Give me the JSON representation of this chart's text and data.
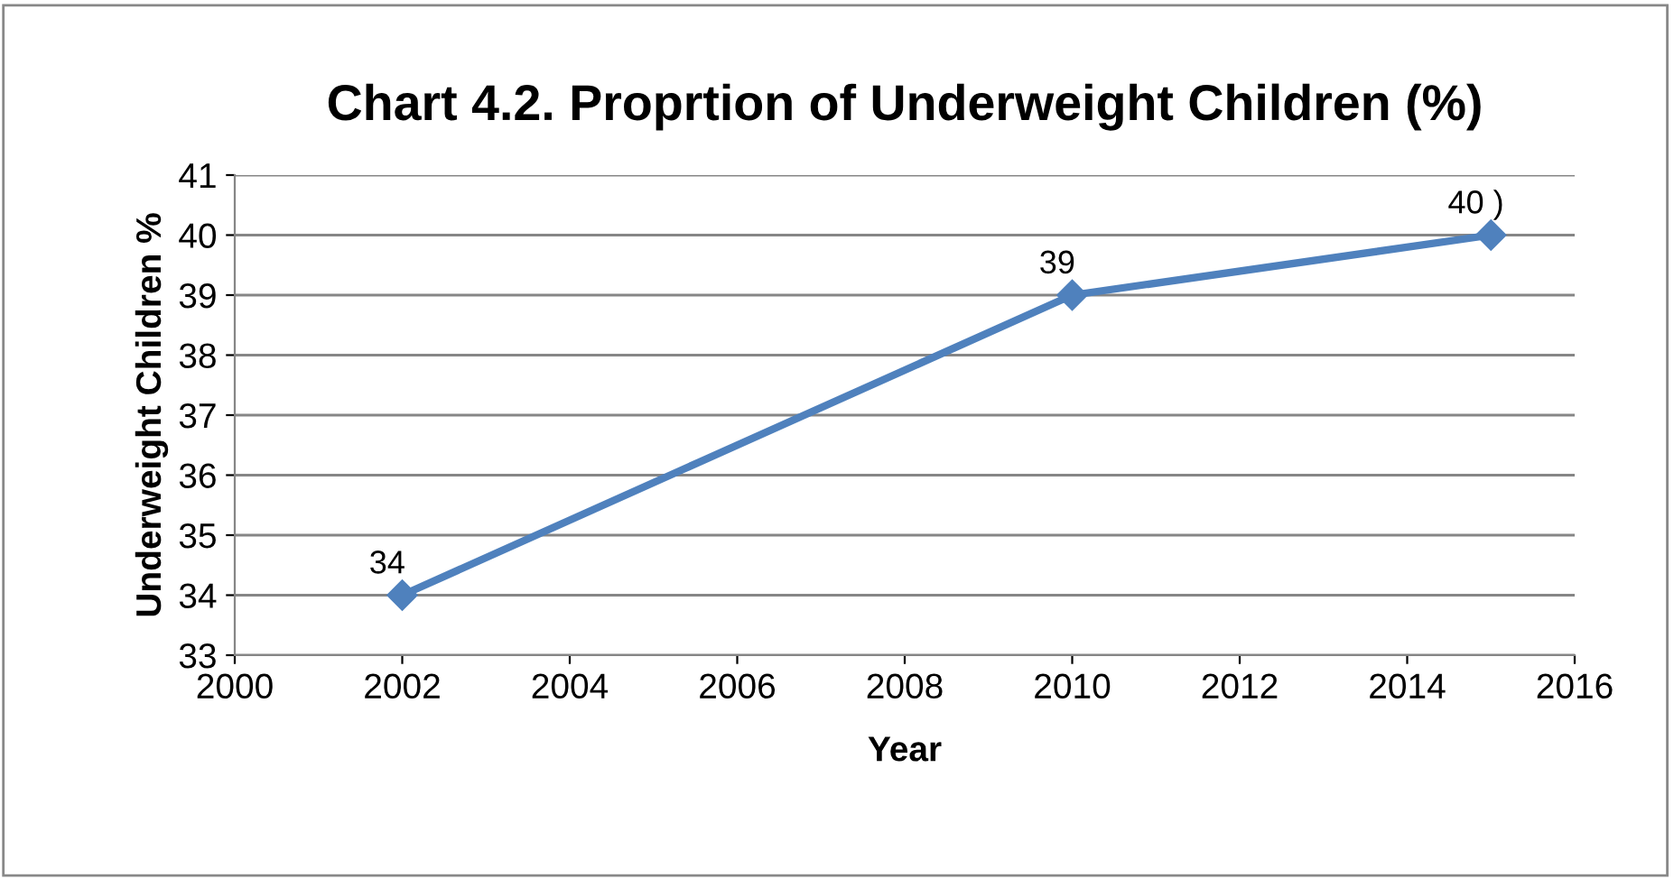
{
  "chart_data": {
    "type": "line",
    "title": "Chart 4.2. Proprtion of Underweight Children (%)",
    "xlabel": "Year",
    "ylabel": "Underweight Children %",
    "x": [
      2002,
      2010,
      2015
    ],
    "series": [
      {
        "color": "#4f81bd",
        "values": [
          34,
          39,
          40
        ],
        "value_labels": [
          "34",
          "39",
          "40 )"
        ]
      }
    ],
    "xlim": [
      2000,
      2016
    ],
    "xticks": [
      2000,
      2002,
      2004,
      2006,
      2008,
      2010,
      2012,
      2014,
      2016
    ],
    "ylim": [
      33,
      41
    ],
    "yticks": [
      33,
      34,
      35,
      36,
      37,
      38,
      39,
      40,
      41
    ],
    "grid": "y",
    "marker": "diamond",
    "line_style": "solid"
  }
}
